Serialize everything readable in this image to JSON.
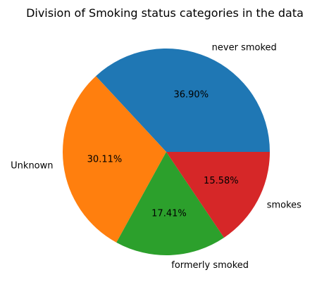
{
  "chart_data": {
    "type": "pie",
    "title": "Division of Smoking status categories in the data",
    "categories": [
      "never smoked",
      "Unknown",
      "formerly smoked",
      "smokes"
    ],
    "values": [
      36.9,
      30.11,
      17.41,
      15.58
    ],
    "percent_labels": [
      "36.90%",
      "30.11%",
      "17.41%",
      "15.58%"
    ],
    "colors": [
      "#1f77b4",
      "#ff7f0e",
      "#2ca02c",
      "#d62728"
    ],
    "start_angle_deg": 0,
    "direction": "counterclockwise"
  }
}
